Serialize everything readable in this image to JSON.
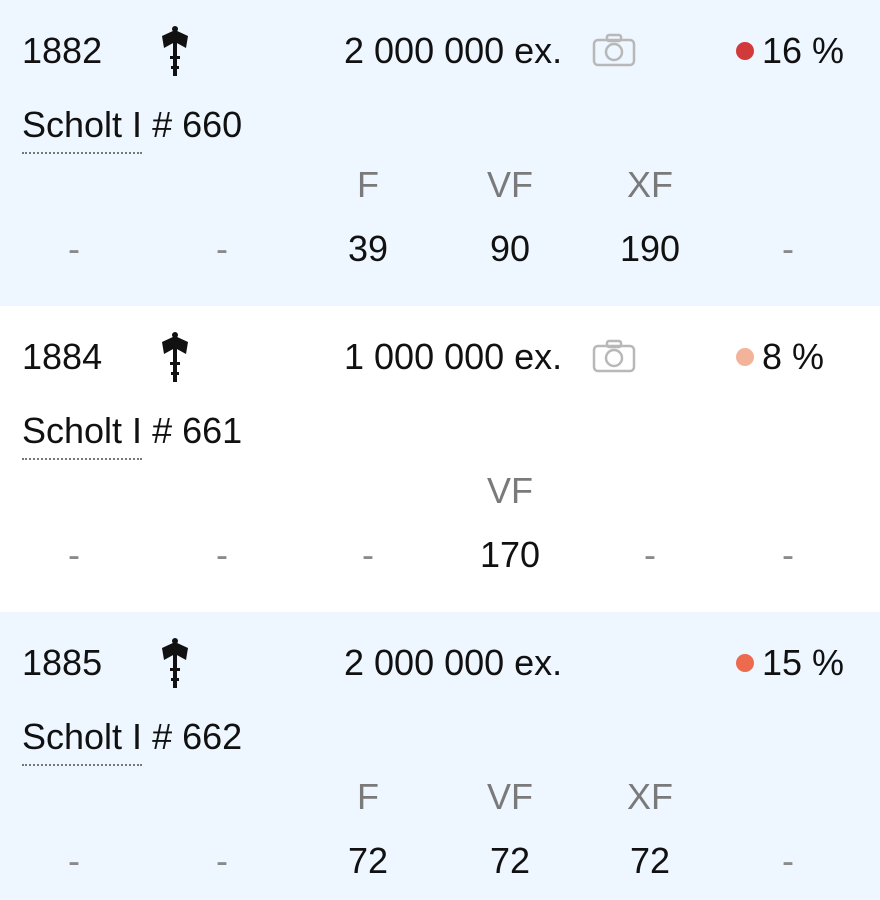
{
  "icons": {
    "mint_mark": "axe-mint-mark-icon",
    "photo": "camera-icon"
  },
  "rows": [
    {
      "year": "1882",
      "mintage": "2 000 000 ex.",
      "has_photo": true,
      "rarity": "16 %",
      "rarity_color": "#d23a3a",
      "catalog": "Scholt I",
      "number": "# 660",
      "grades": [
        "",
        "",
        "F",
        "VF",
        "XF",
        ""
      ],
      "values": [
        "-",
        "-",
        "39",
        "90",
        "190",
        "-"
      ]
    },
    {
      "year": "1884",
      "mintage": "1 000 000 ex.",
      "has_photo": true,
      "rarity": "8 %",
      "rarity_color": "#f3b39a",
      "catalog": "Scholt I",
      "number": "# 661",
      "grades": [
        "",
        "",
        "",
        "VF",
        "",
        ""
      ],
      "values": [
        "-",
        "-",
        "-",
        "170",
        "-",
        "-"
      ]
    },
    {
      "year": "1885",
      "mintage": "2 000 000 ex.",
      "has_photo": false,
      "rarity": "15 %",
      "rarity_color": "#ec6a4e",
      "catalog": "Scholt I",
      "number": "# 662",
      "grades": [
        "",
        "",
        "F",
        "VF",
        "XF",
        ""
      ],
      "values": [
        "-",
        "-",
        "72",
        "72",
        "72",
        "-"
      ]
    }
  ]
}
